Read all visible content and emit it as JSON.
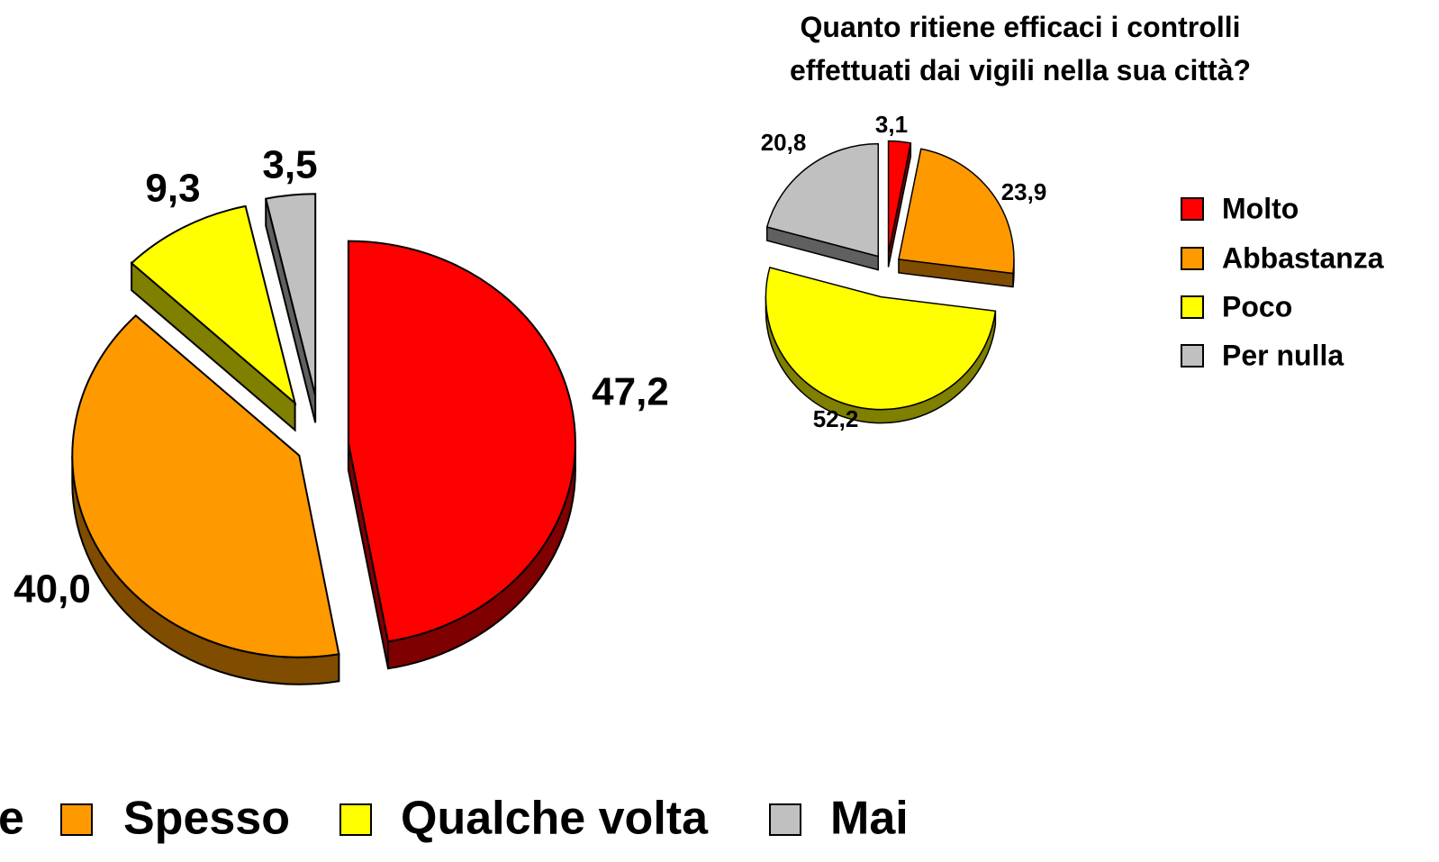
{
  "chart_data": [
    {
      "type": "pie",
      "categories": [
        "e",
        "Spesso",
        "Qualche volta",
        "Mai"
      ],
      "values": [
        47.2,
        40.0,
        9.3,
        3.5
      ],
      "value_labels": [
        "47,2",
        "40,0",
        "9,3",
        "3,5"
      ],
      "colors": [
        "#ff0000",
        "#ff9900",
        "#ffff00",
        "#c0c0c0"
      ],
      "legend": "bottom"
    },
    {
      "type": "pie",
      "title": "Quanto ritiene efficaci i controlli effettuati dai vigili nella sua città?",
      "categories": [
        "Molto",
        "Abbastanza",
        "Poco",
        "Per nulla"
      ],
      "values": [
        3.1,
        23.9,
        52.2,
        20.8
      ],
      "value_labels": [
        "3,1",
        "23,9",
        "52,2",
        "20,8"
      ],
      "colors": [
        "#ff0000",
        "#ff9900",
        "#ffff00",
        "#c0c0c0"
      ],
      "legend": "right"
    }
  ]
}
